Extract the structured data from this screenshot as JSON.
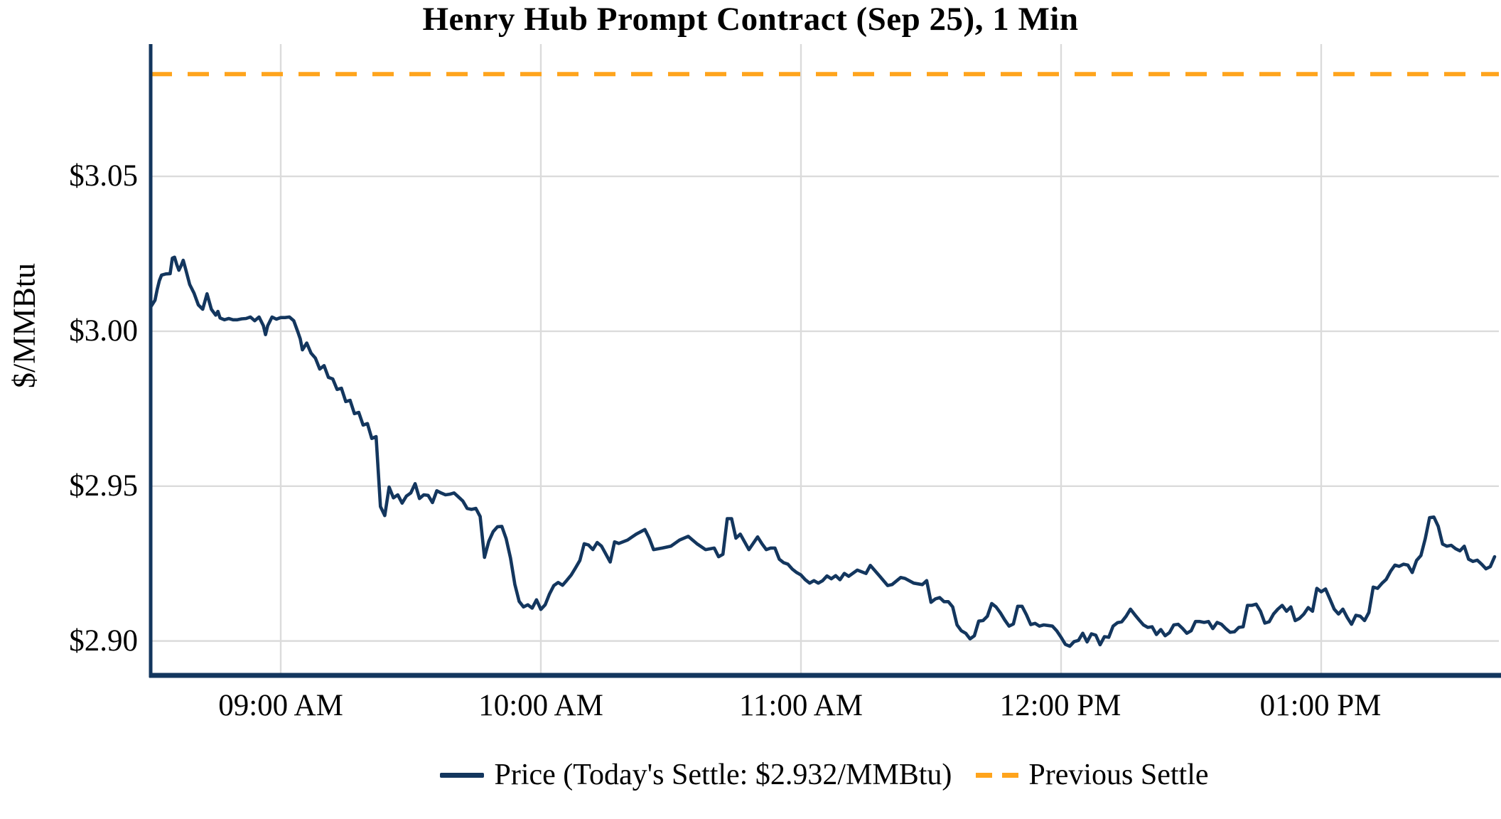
{
  "title": "Henry Hub Prompt Contract (Sep 25), 1 Min",
  "y_axis_label": "$/MMBtu",
  "legend": {
    "price_label": "Price (Today's Settle: $2.932/MMBtu)",
    "prev_settle_label": "Previous Settle"
  },
  "colors": {
    "price_line": "#13365E",
    "prev_settle_line": "#FFA41C",
    "gridline": "#DBDBDB",
    "axis_spine": "#13365E"
  },
  "chart_data": {
    "type": "line",
    "title": "Henry Hub Prompt Contract (Sep 25), 1 Min",
    "xlabel": "",
    "ylabel": "$/MMBtu",
    "grid": true,
    "legend_position": "bottom",
    "x_axis": {
      "unit": "minutes since 08:30 AM",
      "range": [
        0,
        310
      ],
      "ticks": [
        {
          "label": "09:00 AM",
          "minutes": 30
        },
        {
          "label": "10:00 AM",
          "minutes": 90
        },
        {
          "label": "11:00 AM",
          "minutes": 150
        },
        {
          "label": "12:00 PM",
          "minutes": 210
        },
        {
          "label": "01:00 PM",
          "minutes": 270
        }
      ]
    },
    "y_axis": {
      "range": [
        2.8889,
        3.0927
      ],
      "ticks": [
        {
          "label": "$3.05",
          "value": 3.05
        },
        {
          "label": "$3.00",
          "value": 3.0
        },
        {
          "label": "$2.95",
          "value": 2.95
        },
        {
          "label": "$2.90",
          "value": 2.9
        }
      ]
    },
    "series": [
      {
        "name": "Price (Today's Settle: $2.932/MMBtu)",
        "style": "solid",
        "color": "#13365E",
        "todays_settle": 2.932,
        "points": [
          [
            0,
            3.0078
          ],
          [
            1,
            3.01
          ],
          [
            1.5,
            3.0135
          ],
          [
            2,
            3.0163
          ],
          [
            2.5,
            3.0181
          ],
          [
            3.5,
            3.0185
          ],
          [
            4.5,
            3.0186
          ],
          [
            5,
            3.0236
          ],
          [
            5.5,
            3.0239
          ],
          [
            6,
            3.0216
          ],
          [
            6.5,
            3.0197
          ],
          [
            7,
            3.0211
          ],
          [
            7.5,
            3.0229
          ],
          [
            8,
            3.0204
          ],
          [
            9,
            3.0151
          ],
          [
            10,
            3.0123
          ],
          [
            11,
            3.0085
          ],
          [
            12,
            3.0071
          ],
          [
            13,
            3.0121
          ],
          [
            14,
            3.0071
          ],
          [
            15,
            3.0052
          ],
          [
            15.5,
            3.0064
          ],
          [
            16,
            3.0043
          ],
          [
            17,
            3.0037
          ],
          [
            18,
            3.0041
          ],
          [
            19,
            3.0037
          ],
          [
            20,
            3.0037
          ],
          [
            21,
            3.004
          ],
          [
            22,
            3.0041
          ],
          [
            23,
            3.0046
          ],
          [
            24,
            3.0034
          ],
          [
            25,
            3.0046
          ],
          [
            26,
            3.0018
          ],
          [
            26.5,
            2.9989
          ],
          [
            27,
            3.0018
          ],
          [
            28,
            3.0046
          ],
          [
            29,
            3.0039
          ],
          [
            30,
            3.0044
          ],
          [
            31,
            3.0044
          ],
          [
            32,
            3.0046
          ],
          [
            33,
            3.0034
          ],
          [
            34,
            2.9996
          ],
          [
            34.5,
            2.9975
          ],
          [
            35,
            2.994
          ],
          [
            36,
            2.9962
          ],
          [
            37,
            2.9929
          ],
          [
            38,
            2.9913
          ],
          [
            39,
            2.9878
          ],
          [
            40,
            2.9889
          ],
          [
            41,
            2.9851
          ],
          [
            42,
            2.9846
          ],
          [
            43,
            2.9812
          ],
          [
            44,
            2.9816
          ],
          [
            45,
            2.9773
          ],
          [
            46,
            2.9777
          ],
          [
            47,
            2.9734
          ],
          [
            48,
            2.9738
          ],
          [
            49,
            2.9697
          ],
          [
            50,
            2.9702
          ],
          [
            51,
            2.9654
          ],
          [
            52,
            2.966
          ],
          [
            53,
            2.9434
          ],
          [
            54,
            2.9405
          ],
          [
            55,
            2.9497
          ],
          [
            56,
            2.9462
          ],
          [
            57,
            2.9472
          ],
          [
            58,
            2.9445
          ],
          [
            59,
            2.9468
          ],
          [
            60,
            2.9478
          ],
          [
            61,
            2.9508
          ],
          [
            62,
            2.946
          ],
          [
            63,
            2.9472
          ],
          [
            64,
            2.947
          ],
          [
            65,
            2.9447
          ],
          [
            66,
            2.9485
          ],
          [
            67,
            2.9478
          ],
          [
            68,
            2.9472
          ],
          [
            69,
            2.9474
          ],
          [
            70,
            2.9478
          ],
          [
            71,
            2.9465
          ],
          [
            72,
            2.9452
          ],
          [
            73,
            2.9428
          ],
          [
            74,
            2.9425
          ],
          [
            75,
            2.9428
          ],
          [
            76,
            2.9402
          ],
          [
            77,
            2.927
          ],
          [
            78,
            2.9322
          ],
          [
            79,
            2.9353
          ],
          [
            80,
            2.9369
          ],
          [
            81,
            2.937
          ],
          [
            82,
            2.933
          ],
          [
            83,
            2.9268
          ],
          [
            84,
            2.9183
          ],
          [
            85,
            2.9128
          ],
          [
            86,
            2.911
          ],
          [
            87,
            2.9117
          ],
          [
            88,
            2.9106
          ],
          [
            89,
            2.9133
          ],
          [
            90,
            2.9102
          ],
          [
            91,
            2.9117
          ],
          [
            92,
            2.9152
          ],
          [
            93,
            2.9179
          ],
          [
            94,
            2.9189
          ],
          [
            95,
            2.918
          ],
          [
            96,
            2.9196
          ],
          [
            97,
            2.9213
          ],
          [
            98,
            2.9236
          ],
          [
            99,
            2.926
          ],
          [
            100,
            2.9314
          ],
          [
            101,
            2.931
          ],
          [
            102,
            2.9295
          ],
          [
            103,
            2.9318
          ],
          [
            104,
            2.9306
          ],
          [
            106,
            2.9255
          ],
          [
            107,
            2.932
          ],
          [
            108,
            2.9315
          ],
          [
            110,
            2.9326
          ],
          [
            112,
            2.9345
          ],
          [
            114,
            2.936
          ],
          [
            115,
            2.9332
          ],
          [
            116,
            2.9295
          ],
          [
            118,
            2.93
          ],
          [
            120,
            2.9306
          ],
          [
            122,
            2.9326
          ],
          [
            124,
            2.9338
          ],
          [
            125,
            2.9326
          ],
          [
            126,
            2.9314
          ],
          [
            128,
            2.9295
          ],
          [
            130,
            2.93
          ],
          [
            131,
            2.9272
          ],
          [
            132,
            2.928
          ],
          [
            133,
            2.9395
          ],
          [
            134,
            2.9395
          ],
          [
            135,
            2.9332
          ],
          [
            136,
            2.9345
          ],
          [
            138,
            2.9295
          ],
          [
            140,
            2.9336
          ],
          [
            141,
            2.9314
          ],
          [
            142,
            2.9295
          ],
          [
            143,
            2.93
          ],
          [
            144,
            2.93
          ],
          [
            145,
            2.9264
          ],
          [
            146,
            2.9253
          ],
          [
            147,
            2.9248
          ],
          [
            148,
            2.9232
          ],
          [
            149,
            2.9221
          ],
          [
            150,
            2.9213
          ],
          [
            151,
            2.9198
          ],
          [
            152,
            2.9187
          ],
          [
            153,
            2.9195
          ],
          [
            154,
            2.9187
          ],
          [
            155,
            2.9195
          ],
          [
            156,
            2.921
          ],
          [
            157,
            2.9201
          ],
          [
            158,
            2.9211
          ],
          [
            159,
            2.9198
          ],
          [
            160,
            2.9218
          ],
          [
            161,
            2.9209
          ],
          [
            163,
            2.9229
          ],
          [
            165,
            2.9218
          ],
          [
            166,
            2.9244
          ],
          [
            168,
            2.9212
          ],
          [
            170,
            2.9179
          ],
          [
            171,
            2.9182
          ],
          [
            173,
            2.9205
          ],
          [
            174,
            2.9202
          ],
          [
            176,
            2.9187
          ],
          [
            178,
            2.9182
          ],
          [
            179,
            2.9195
          ],
          [
            180,
            2.9125
          ],
          [
            181,
            2.9136
          ],
          [
            182,
            2.914
          ],
          [
            183,
            2.9127
          ],
          [
            184,
            2.9127
          ],
          [
            185,
            2.911
          ],
          [
            186,
            2.9052
          ],
          [
            187,
            2.9033
          ],
          [
            188,
            2.9025
          ],
          [
            189,
            2.9007
          ],
          [
            190,
            2.9017
          ],
          [
            191,
            2.9064
          ],
          [
            192,
            2.9066
          ],
          [
            193,
            2.908
          ],
          [
            194,
            2.9121
          ],
          [
            195,
            2.911
          ],
          [
            196,
            2.9091
          ],
          [
            197,
            2.9068
          ],
          [
            198,
            2.9048
          ],
          [
            199,
            2.9055
          ],
          [
            200,
            2.9112
          ],
          [
            201,
            2.9112
          ],
          [
            202,
            2.9085
          ],
          [
            203,
            2.9053
          ],
          [
            204,
            2.9057
          ],
          [
            205,
            2.9048
          ],
          [
            206,
            2.9052
          ],
          [
            207,
            2.905
          ],
          [
            208,
            2.9048
          ],
          [
            209,
            2.9033
          ],
          [
            210,
            2.9012
          ],
          [
            211,
            2.8989
          ],
          [
            212,
            2.8983
          ],
          [
            213,
            2.8998
          ],
          [
            214,
            2.9002
          ],
          [
            215,
            2.9025
          ],
          [
            216,
            2.8997
          ],
          [
            217,
            2.9023
          ],
          [
            218,
            2.9019
          ],
          [
            219,
            2.8988
          ],
          [
            220,
            2.9014
          ],
          [
            221,
            2.9012
          ],
          [
            222,
            2.9048
          ],
          [
            223,
            2.9059
          ],
          [
            224,
            2.9062
          ],
          [
            225,
            2.908
          ],
          [
            226,
            2.9103
          ],
          [
            227,
            2.9085
          ],
          [
            228,
            2.9068
          ],
          [
            229,
            2.9052
          ],
          [
            230,
            2.9044
          ],
          [
            231,
            2.9046
          ],
          [
            232,
            2.9021
          ],
          [
            233,
            2.9037
          ],
          [
            234,
            2.9017
          ],
          [
            235,
            2.9027
          ],
          [
            236,
            2.9052
          ],
          [
            237,
            2.9054
          ],
          [
            238,
            2.9041
          ],
          [
            239,
            2.9025
          ],
          [
            240,
            2.9033
          ],
          [
            241,
            2.9063
          ],
          [
            242,
            2.9063
          ],
          [
            243,
            2.906
          ],
          [
            244,
            2.9063
          ],
          [
            245,
            2.904
          ],
          [
            246,
            2.906
          ],
          [
            247,
            2.9054
          ],
          [
            248,
            2.904
          ],
          [
            249,
            2.9028
          ],
          [
            250,
            2.903
          ],
          [
            251,
            2.9044
          ],
          [
            252,
            2.9046
          ],
          [
            253,
            2.9115
          ],
          [
            254,
            2.9115
          ],
          [
            255,
            2.9119
          ],
          [
            256,
            2.9096
          ],
          [
            257,
            2.9058
          ],
          [
            258,
            2.9062
          ],
          [
            259,
            2.9087
          ],
          [
            260,
            2.9103
          ],
          [
            261,
            2.9115
          ],
          [
            262,
            2.9096
          ],
          [
            263,
            2.911
          ],
          [
            264,
            2.9066
          ],
          [
            265,
            2.9073
          ],
          [
            266,
            2.9087
          ],
          [
            267,
            2.9108
          ],
          [
            268,
            2.9096
          ],
          [
            269,
            2.917
          ],
          [
            270,
            2.9159
          ],
          [
            271,
            2.9168
          ],
          [
            272,
            2.9136
          ],
          [
            273,
            2.9103
          ],
          [
            274,
            2.9087
          ],
          [
            275,
            2.9103
          ],
          [
            276,
            2.9076
          ],
          [
            277,
            2.9054
          ],
          [
            278,
            2.9083
          ],
          [
            279,
            2.908
          ],
          [
            280,
            2.9066
          ],
          [
            281,
            2.9092
          ],
          [
            282,
            2.9174
          ],
          [
            283,
            2.917
          ],
          [
            284,
            2.9186
          ],
          [
            285,
            2.9199
          ],
          [
            286,
            2.9225
          ],
          [
            287,
            2.9245
          ],
          [
            288,
            2.9241
          ],
          [
            289,
            2.9248
          ],
          [
            290,
            2.9245
          ],
          [
            291,
            2.9221
          ],
          [
            292,
            2.926
          ],
          [
            293,
            2.9276
          ],
          [
            294,
            2.933
          ],
          [
            295,
            2.9398
          ],
          [
            296,
            2.94
          ],
          [
            297,
            2.937
          ],
          [
            298,
            2.9313
          ],
          [
            299,
            2.9306
          ],
          [
            300,
            2.9309
          ],
          [
            301,
            2.9298
          ],
          [
            302,
            2.9291
          ],
          [
            303,
            2.9306
          ],
          [
            304,
            2.9264
          ],
          [
            305,
            2.9257
          ],
          [
            306,
            2.9261
          ],
          [
            307,
            2.9248
          ],
          [
            308,
            2.9233
          ],
          [
            309,
            2.924
          ],
          [
            310,
            2.9272
          ]
        ]
      },
      {
        "name": "Previous Settle",
        "style": "dashed",
        "color": "#FFA41C",
        "value": 3.083
      }
    ]
  }
}
